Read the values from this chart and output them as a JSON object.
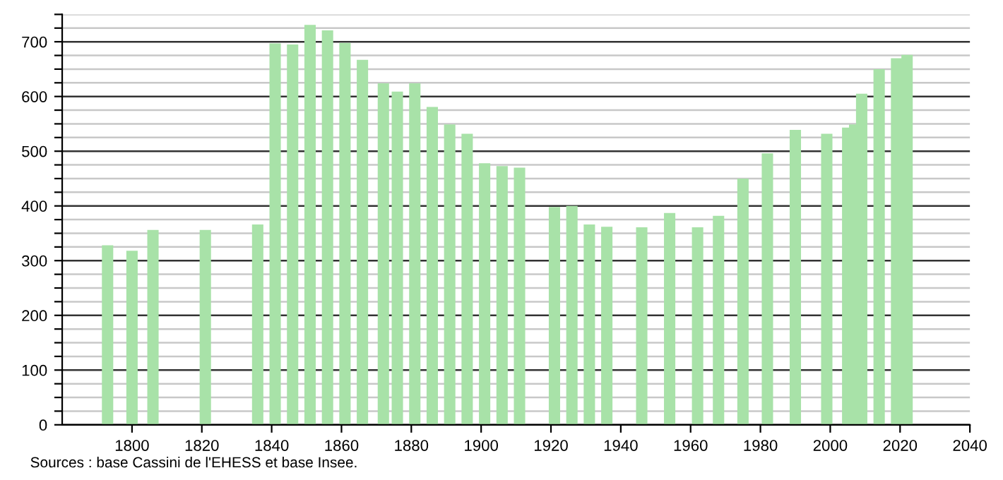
{
  "chart_data": {
    "type": "bar",
    "color": "#a8e2a8",
    "x": [
      1793,
      1800,
      1806,
      1821,
      1836,
      1841,
      1846,
      1851,
      1856,
      1861,
      1866,
      1872,
      1876,
      1881,
      1886,
      1891,
      1896,
      1901,
      1906,
      1911,
      1921,
      1926,
      1931,
      1936,
      1946,
      1954,
      1962,
      1968,
      1975,
      1982,
      1990,
      1999,
      2005,
      2007,
      2009,
      2014,
      2019,
      2022
    ],
    "values": [
      328,
      318,
      356,
      356,
      366,
      697,
      695,
      731,
      721,
      698,
      667,
      624,
      609,
      624,
      581,
      549,
      532,
      478,
      473,
      470,
      398,
      400,
      366,
      362,
      361,
      387,
      361,
      382,
      450,
      496,
      539,
      532,
      543,
      549,
      605,
      650,
      670,
      676
    ],
    "xlim": [
      1780,
      2040
    ],
    "xticks": [
      1800,
      1820,
      1840,
      1860,
      1880,
      1900,
      1920,
      1940,
      1960,
      1980,
      2000,
      2020,
      2040
    ],
    "ylim": [
      0,
      750
    ],
    "yticks": [
      0,
      {
        "value": 25,
        "label": null
      },
      {
        "value": 50,
        "label": null
      },
      {
        "value": 75,
        "label": null
      },
      100,
      {
        "value": 125,
        "label": null
      },
      {
        "value": 150,
        "label": null
      },
      {
        "value": 175,
        "label": null
      },
      200,
      {
        "value": 225,
        "label": null
      },
      {
        "value": 250,
        "label": null
      },
      {
        "value": 275,
        "label": null
      },
      300,
      {
        "value": 325,
        "label": null
      },
      {
        "value": 350,
        "label": null
      },
      {
        "value": 375,
        "label": null
      },
      400,
      {
        "value": 425,
        "label": null
      },
      {
        "value": 450,
        "label": null
      },
      {
        "value": 475,
        "label": null
      },
      500,
      {
        "value": 525,
        "label": null
      },
      {
        "value": 550,
        "label": null
      },
      {
        "value": 575,
        "label": null
      },
      600,
      {
        "value": 625,
        "label": null
      },
      {
        "value": 650,
        "label": null
      },
      {
        "value": 675,
        "label": null
      },
      700,
      {
        "value": 725,
        "label": null
      },
      {
        "value": 750,
        "label": null
      }
    ],
    "grid": "y",
    "annotations": [
      "Sources : base Cassini de l'EHESS et base Insee."
    ]
  }
}
